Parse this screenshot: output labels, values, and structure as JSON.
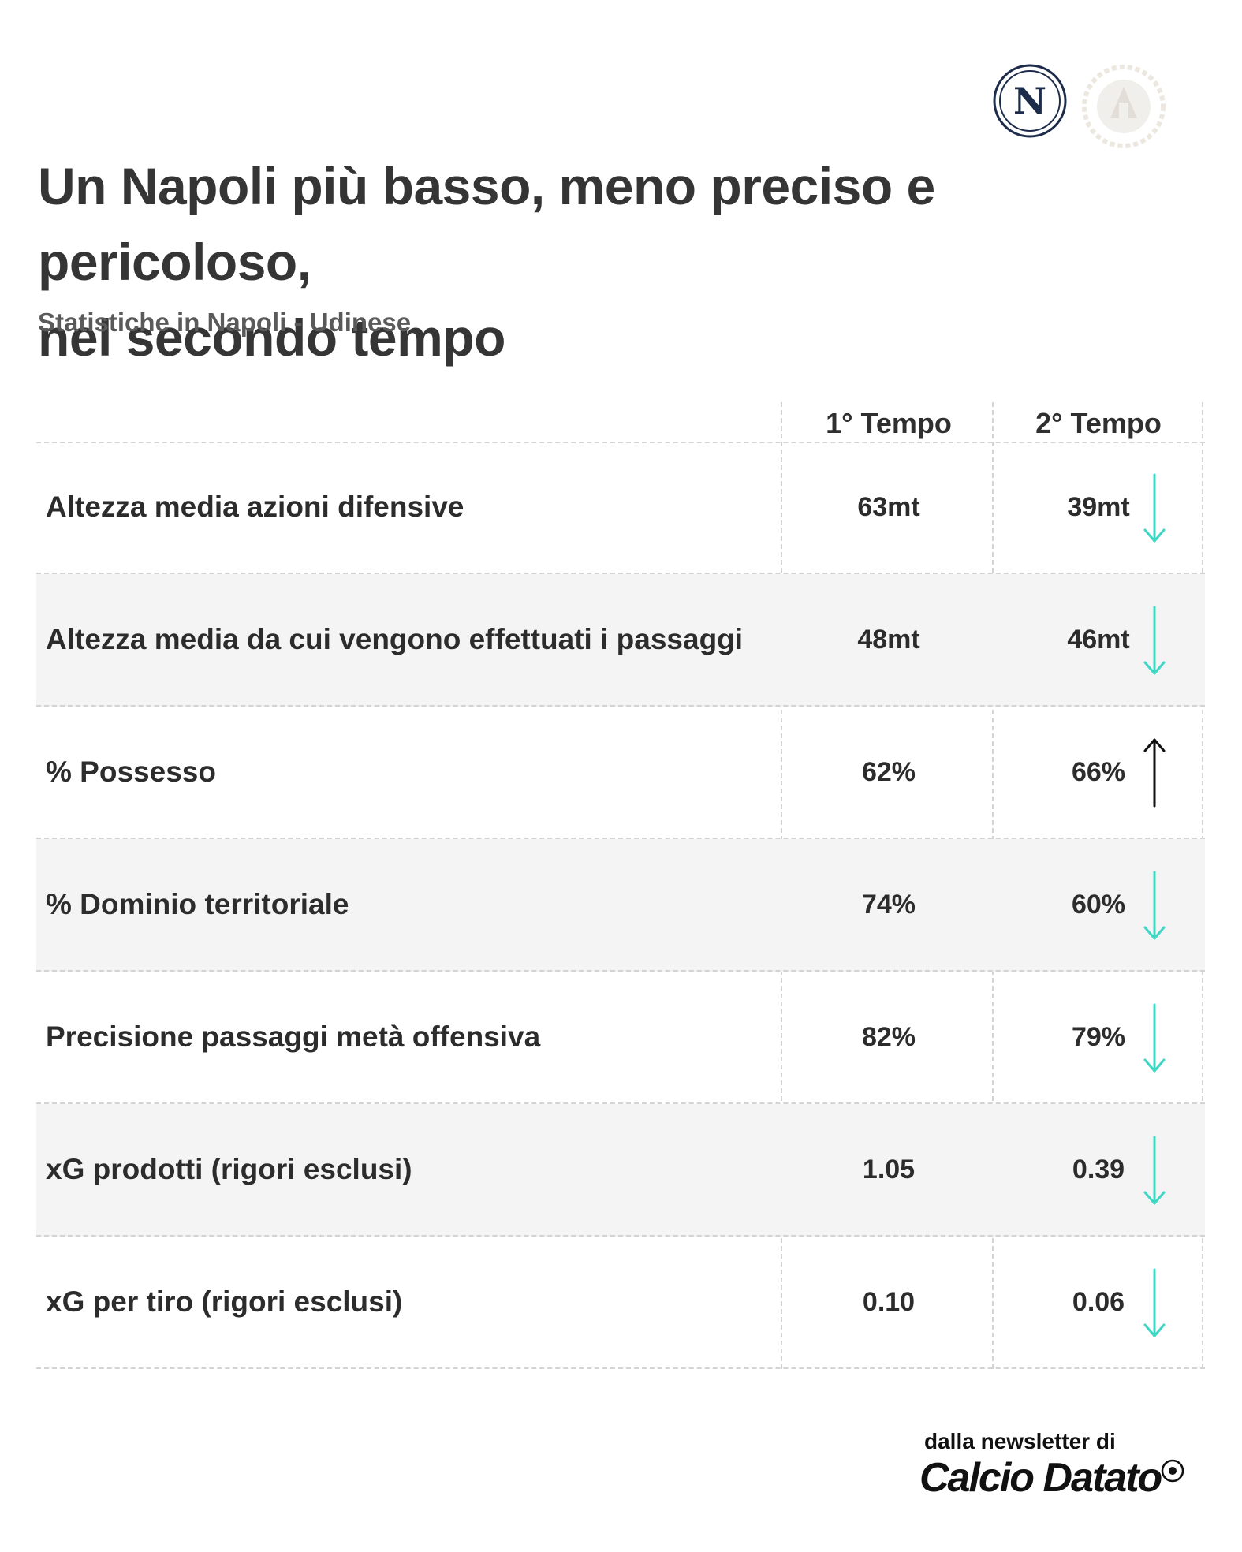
{
  "header": {
    "title_line1": "Un Napoli più basso, meno preciso e pericoloso,",
    "title_line2": "nel secondo tempo",
    "subtitle": "Statistiche in Napoli - Udinese",
    "logos": [
      {
        "icon": "napoli-crest-icon",
        "letter": "N"
      },
      {
        "icon": "udinese-crest-icon"
      }
    ]
  },
  "colors": {
    "down_arrow": "#3fd6c4",
    "up_arrow": "#111111",
    "alt_row": "#f4f4f4",
    "title": "#353535"
  },
  "chart_data": {
    "type": "table",
    "columns": [
      "1° Tempo",
      "2° Tempo"
    ],
    "rows": [
      {
        "label": "Altezza media azioni difensive",
        "t1": "63mt",
        "t2": "39mt",
        "trend": "down"
      },
      {
        "label": "Altezza media da cui vengono effettuati i passaggi",
        "t1": "48mt",
        "t2": "46mt",
        "trend": "down"
      },
      {
        "label": "% Possesso",
        "t1": "62%",
        "t2": "66%",
        "trend": "up"
      },
      {
        "label": "% Dominio territoriale",
        "t1": "74%",
        "t2": "60%",
        "trend": "down"
      },
      {
        "label": "Precisione passaggi metà offensiva",
        "t1": "82%",
        "t2": "79%",
        "trend": "down"
      },
      {
        "label": "xG prodotti (rigori esclusi)",
        "t1": "1.05",
        "t2": "0.39",
        "trend": "down"
      },
      {
        "label": "xG per tiro (rigori esclusi)",
        "t1": "0.10",
        "t2": "0.06",
        "trend": "down"
      }
    ]
  },
  "footer": {
    "prefix": "dalla newsletter di",
    "brand": "Calcio Datato"
  }
}
